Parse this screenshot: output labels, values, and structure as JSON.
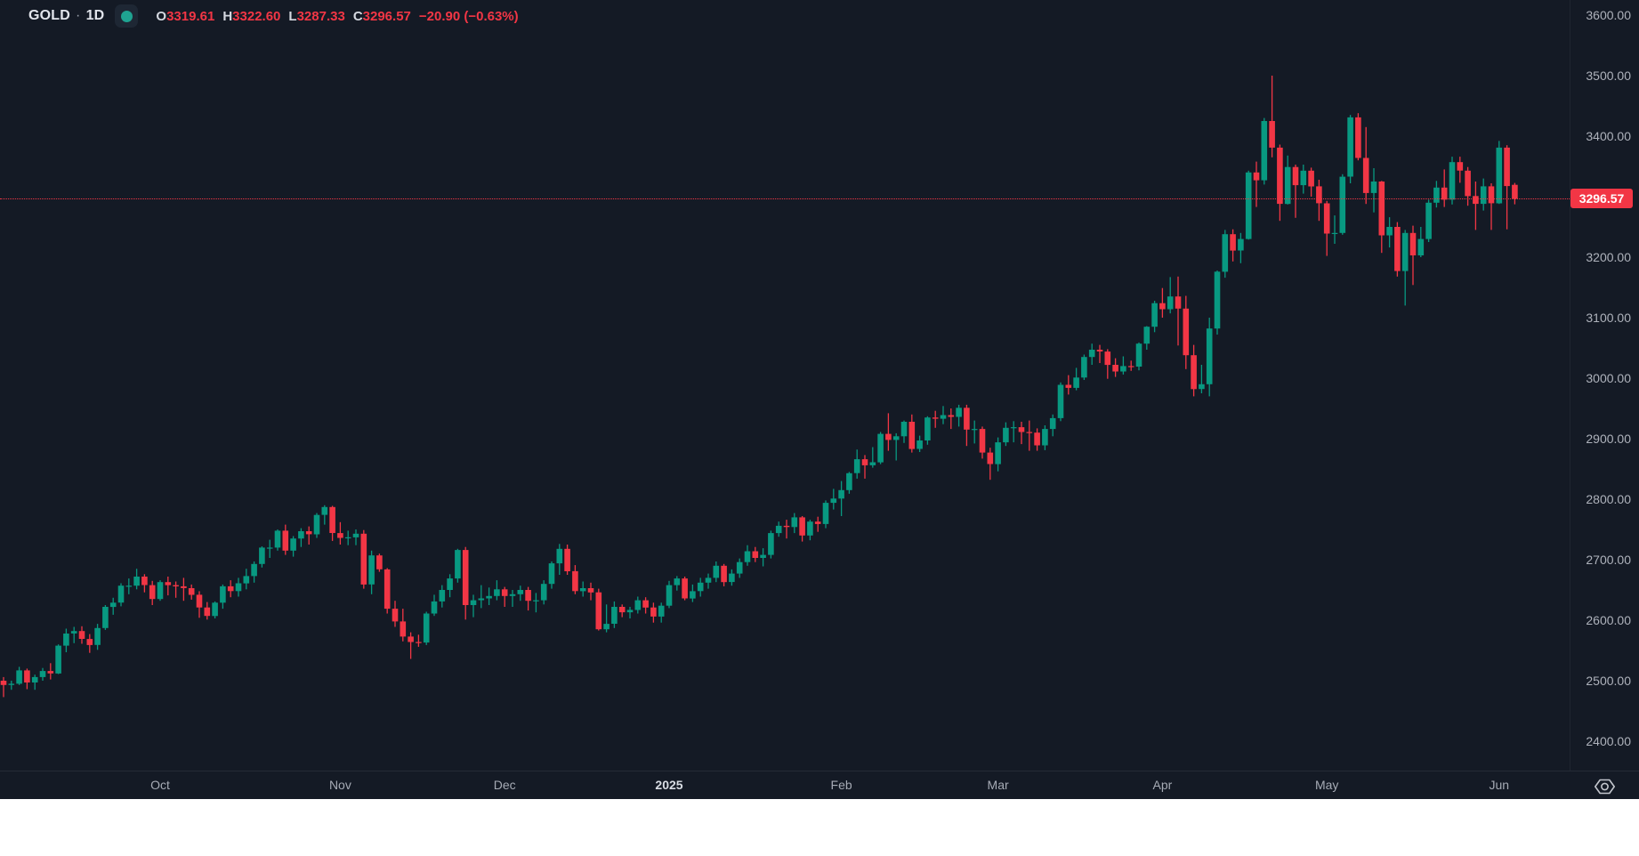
{
  "header": {
    "symbol": "GOLD",
    "separator": "·",
    "interval": "1D",
    "open_label": "O",
    "open_value": "3319.61",
    "high_label": "H",
    "high_value": "3322.60",
    "low_label": "L",
    "low_value": "3287.33",
    "close_label": "C",
    "close_value": "3296.57",
    "change_text": "−20.90 (−0.63%)"
  },
  "price_axis": {
    "labels": [
      "3600.00",
      "3500.00",
      "3400.00",
      "3300.00",
      "3200.00",
      "3100.00",
      "3000.00",
      "2900.00",
      "2800.00",
      "2700.00",
      "2600.00",
      "2500.00",
      "2400.00"
    ]
  },
  "time_axis": {
    "ticks": [
      {
        "label": "Oct",
        "index": 20,
        "bold": false
      },
      {
        "label": "Nov",
        "index": 43,
        "bold": false
      },
      {
        "label": "Dec",
        "index": 64,
        "bold": false
      },
      {
        "label": "2025",
        "index": 85,
        "bold": true
      },
      {
        "label": "Feb",
        "index": 107,
        "bold": false
      },
      {
        "label": "Mar",
        "index": 127,
        "bold": false
      },
      {
        "label": "Apr",
        "index": 148,
        "bold": false
      },
      {
        "label": "May",
        "index": 169,
        "bold": false
      },
      {
        "label": "Jun",
        "index": 191,
        "bold": false
      }
    ]
  },
  "price_line": {
    "value": 3296.57,
    "label": "3296.57",
    "color": "#f23645"
  },
  "colors": {
    "background": "#141a25",
    "up": "#089981",
    "down": "#f23645",
    "axis_text": "#aeb2bb",
    "bright_text": "#e2e5ec",
    "status_dot": "#1fa391",
    "border": "#252b37"
  },
  "chart_data": {
    "type": "candlestick",
    "symbol": "GOLD",
    "interval": "1D",
    "start_date": "2024-09-03",
    "end_date": "2025-06-04",
    "y_axis": {
      "min": 2400,
      "max": 3600,
      "tick_step": 100
    },
    "legend_ohlc": {
      "open": 3319.61,
      "high": 3322.6,
      "low": 3287.33,
      "close": 3296.57,
      "change": -20.9,
      "change_pct": -0.63
    },
    "ohlc": [
      [
        2500,
        2506,
        2473,
        2493
      ],
      [
        2493,
        2500,
        2485,
        2495
      ],
      [
        2495,
        2523,
        2493,
        2517
      ],
      [
        2517,
        2520,
        2486,
        2497
      ],
      [
        2497,
        2510,
        2485,
        2506
      ],
      [
        2506,
        2521,
        2500,
        2516
      ],
      [
        2516,
        2529,
        2502,
        2512
      ],
      [
        2512,
        2560,
        2511,
        2558
      ],
      [
        2558,
        2586,
        2547,
        2578
      ],
      [
        2578,
        2589,
        2562,
        2582
      ],
      [
        2582,
        2590,
        2561,
        2569
      ],
      [
        2569,
        2577,
        2546,
        2559
      ],
      [
        2559,
        2594,
        2551,
        2587
      ],
      [
        2587,
        2625,
        2584,
        2622
      ],
      [
        2622,
        2637,
        2609,
        2629
      ],
      [
        2629,
        2661,
        2623,
        2657
      ],
      [
        2657,
        2669,
        2643,
        2657
      ],
      [
        2657,
        2685,
        2651,
        2672
      ],
      [
        2672,
        2676,
        2646,
        2658
      ],
      [
        2658,
        2665,
        2625,
        2635
      ],
      [
        2635,
        2666,
        2632,
        2663
      ],
      [
        2663,
        2672,
        2641,
        2658
      ],
      [
        2658,
        2664,
        2637,
        2656
      ],
      [
        2656,
        2670,
        2632,
        2653
      ],
      [
        2653,
        2659,
        2634,
        2642
      ],
      [
        2642,
        2648,
        2604,
        2621
      ],
      [
        2621,
        2630,
        2601,
        2607
      ],
      [
        2607,
        2631,
        2603,
        2629
      ],
      [
        2629,
        2659,
        2619,
        2656
      ],
      [
        2656,
        2666,
        2638,
        2648
      ],
      [
        2648,
        2670,
        2639,
        2661
      ],
      [
        2661,
        2685,
        2651,
        2673
      ],
      [
        2673,
        2697,
        2662,
        2693
      ],
      [
        2693,
        2722,
        2687,
        2720
      ],
      [
        2720,
        2733,
        2703,
        2720
      ],
      [
        2720,
        2750,
        2715,
        2748
      ],
      [
        2748,
        2758,
        2708,
        2715
      ],
      [
        2715,
        2739,
        2705,
        2735
      ],
      [
        2735,
        2752,
        2721,
        2747
      ],
      [
        2747,
        2755,
        2725,
        2742
      ],
      [
        2742,
        2777,
        2736,
        2774
      ],
      [
        2774,
        2790,
        2758,
        2787
      ],
      [
        2787,
        2789,
        2731,
        2744
      ],
      [
        2744,
        2762,
        2725,
        2736
      ],
      [
        2736,
        2748,
        2724,
        2737
      ],
      [
        2737,
        2750,
        2724,
        2743
      ],
      [
        2743,
        2749,
        2652,
        2659
      ],
      [
        2659,
        2715,
        2643,
        2707
      ],
      [
        2707,
        2710,
        2680,
        2684
      ],
      [
        2684,
        2686,
        2611,
        2619
      ],
      [
        2619,
        2632,
        2589,
        2598
      ],
      [
        2598,
        2619,
        2565,
        2573
      ],
      [
        2573,
        2580,
        2536,
        2564
      ],
      [
        2564,
        2576,
        2556,
        2563
      ],
      [
        2563,
        2614,
        2559,
        2611
      ],
      [
        2611,
        2642,
        2607,
        2631
      ],
      [
        2631,
        2658,
        2621,
        2650
      ],
      [
        2650,
        2676,
        2638,
        2669
      ],
      [
        2669,
        2718,
        2662,
        2716
      ],
      [
        2716,
        2721,
        2601,
        2625
      ],
      [
        2625,
        2642,
        2605,
        2633
      ],
      [
        2633,
        2658,
        2620,
        2636
      ],
      [
        2636,
        2654,
        2625,
        2640
      ],
      [
        2640,
        2666,
        2633,
        2651
      ],
      [
        2651,
        2655,
        2622,
        2640
      ],
      [
        2640,
        2650,
        2622,
        2643
      ],
      [
        2643,
        2657,
        2632,
        2650
      ],
      [
        2650,
        2655,
        2616,
        2632
      ],
      [
        2632,
        2645,
        2613,
        2633
      ],
      [
        2633,
        2666,
        2626,
        2660
      ],
      [
        2660,
        2697,
        2652,
        2694
      ],
      [
        2694,
        2726,
        2675,
        2718
      ],
      [
        2718,
        2725,
        2675,
        2681
      ],
      [
        2681,
        2691,
        2643,
        2648
      ],
      [
        2648,
        2664,
        2639,
        2653
      ],
      [
        2653,
        2662,
        2633,
        2646
      ],
      [
        2646,
        2652,
        2583,
        2585
      ],
      [
        2585,
        2626,
        2580,
        2594
      ],
      [
        2594,
        2631,
        2587,
        2622
      ],
      [
        2622,
        2626,
        2605,
        2613
      ],
      [
        2613,
        2622,
        2603,
        2617
      ],
      [
        2617,
        2639,
        2611,
        2633
      ],
      [
        2633,
        2638,
        2611,
        2621
      ],
      [
        2621,
        2629,
        2596,
        2606
      ],
      [
        2606,
        2629,
        2596,
        2624
      ],
      [
        2624,
        2665,
        2620,
        2658
      ],
      [
        2658,
        2673,
        2649,
        2669
      ],
      [
        2669,
        2672,
        2633,
        2636
      ],
      [
        2636,
        2659,
        2630,
        2648
      ],
      [
        2648,
        2670,
        2639,
        2662
      ],
      [
        2662,
        2677,
        2652,
        2670
      ],
      [
        2670,
        2697,
        2663,
        2690
      ],
      [
        2690,
        2693,
        2656,
        2663
      ],
      [
        2663,
        2684,
        2657,
        2677
      ],
      [
        2677,
        2702,
        2670,
        2696
      ],
      [
        2696,
        2724,
        2690,
        2714
      ],
      [
        2714,
        2721,
        2696,
        2703
      ],
      [
        2703,
        2719,
        2689,
        2708
      ],
      [
        2708,
        2748,
        2702,
        2744
      ],
      [
        2744,
        2763,
        2738,
        2756
      ],
      [
        2756,
        2766,
        2735,
        2754
      ],
      [
        2754,
        2777,
        2744,
        2770
      ],
      [
        2770,
        2772,
        2730,
        2740
      ],
      [
        2740,
        2766,
        2732,
        2763
      ],
      [
        2763,
        2771,
        2746,
        2759
      ],
      [
        2759,
        2798,
        2752,
        2794
      ],
      [
        2794,
        2817,
        2783,
        2801
      ],
      [
        2801,
        2830,
        2772,
        2815
      ],
      [
        2815,
        2845,
        2809,
        2843
      ],
      [
        2843,
        2882,
        2834,
        2866
      ],
      [
        2866,
        2873,
        2834,
        2856
      ],
      [
        2856,
        2886,
        2852,
        2861
      ],
      [
        2861,
        2911,
        2858,
        2908
      ],
      [
        2908,
        2942,
        2880,
        2898
      ],
      [
        2898,
        2909,
        2864,
        2904
      ],
      [
        2904,
        2930,
        2893,
        2928
      ],
      [
        2928,
        2940,
        2877,
        2883
      ],
      [
        2883,
        2905,
        2878,
        2897
      ],
      [
        2897,
        2937,
        2890,
        2935
      ],
      [
        2935,
        2946,
        2918,
        2933
      ],
      [
        2933,
        2954,
        2924,
        2939
      ],
      [
        2939,
        2950,
        2916,
        2936
      ],
      [
        2936,
        2956,
        2920,
        2951
      ],
      [
        2951,
        2956,
        2888,
        2915
      ],
      [
        2915,
        2930,
        2892,
        2916
      ],
      [
        2916,
        2920,
        2867,
        2877
      ],
      [
        2877,
        2885,
        2832,
        2858
      ],
      [
        2858,
        2902,
        2846,
        2894
      ],
      [
        2894,
        2927,
        2888,
        2918
      ],
      [
        2918,
        2929,
        2894,
        2919
      ],
      [
        2919,
        2928,
        2891,
        2911
      ],
      [
        2911,
        2930,
        2880,
        2910
      ],
      [
        2910,
        2917,
        2880,
        2889
      ],
      [
        2889,
        2922,
        2881,
        2916
      ],
      [
        2916,
        2940,
        2904,
        2934
      ],
      [
        2934,
        2993,
        2929,
        2989
      ],
      [
        2989,
        3005,
        2973,
        2984
      ],
      [
        2984,
        3017,
        2980,
        3001
      ],
      [
        3001,
        3039,
        2997,
        3035
      ],
      [
        3035,
        3057,
        3022,
        3047
      ],
      [
        3047,
        3055,
        3025,
        3044
      ],
      [
        3044,
        3048,
        2999,
        3022
      ],
      [
        3022,
        3033,
        3002,
        3011
      ],
      [
        3011,
        3036,
        3006,
        3020
      ],
      [
        3020,
        3029,
        3012,
        3019
      ],
      [
        3019,
        3059,
        3013,
        3057
      ],
      [
        3057,
        3086,
        3047,
        3085
      ],
      [
        3085,
        3128,
        3076,
        3124
      ],
      [
        3124,
        3149,
        3100,
        3114
      ],
      [
        3114,
        3167,
        3107,
        3135
      ],
      [
        3135,
        3168,
        3054,
        3115
      ],
      [
        3115,
        3136,
        3015,
        3038
      ],
      [
        3038,
        3055,
        2970,
        2982
      ],
      [
        2982,
        3022,
        2975,
        2990
      ],
      [
        2990,
        3100,
        2970,
        3082
      ],
      [
        3082,
        3178,
        3072,
        3176
      ],
      [
        3176,
        3245,
        3166,
        3238
      ],
      [
        3238,
        3246,
        3193,
        3211
      ],
      [
        3211,
        3240,
        3190,
        3230
      ],
      [
        3230,
        3343,
        3229,
        3340
      ],
      [
        3340,
        3358,
        3283,
        3327
      ],
      [
        3327,
        3430,
        3320,
        3425
      ],
      [
        3425,
        3500,
        3365,
        3381
      ],
      [
        3381,
        3386,
        3260,
        3288
      ],
      [
        3288,
        3368,
        3287,
        3349
      ],
      [
        3349,
        3353,
        3265,
        3319
      ],
      [
        3319,
        3353,
        3305,
        3343
      ],
      [
        3343,
        3348,
        3300,
        3317
      ],
      [
        3317,
        3328,
        3260,
        3289
      ],
      [
        3289,
        3293,
        3202,
        3239
      ],
      [
        3239,
        3269,
        3222,
        3240
      ],
      [
        3240,
        3337,
        3237,
        3333
      ],
      [
        3333,
        3435,
        3322,
        3431
      ],
      [
        3431,
        3438,
        3360,
        3364
      ],
      [
        3364,
        3415,
        3288,
        3306
      ],
      [
        3306,
        3347,
        3274,
        3325
      ],
      [
        3325,
        3326,
        3207,
        3236
      ],
      [
        3236,
        3266,
        3216,
        3250
      ],
      [
        3250,
        3258,
        3168,
        3177
      ],
      [
        3177,
        3245,
        3120,
        3240
      ],
      [
        3240,
        3252,
        3154,
        3203
      ],
      [
        3203,
        3250,
        3200,
        3230
      ],
      [
        3230,
        3295,
        3225,
        3290
      ],
      [
        3290,
        3326,
        3282,
        3315
      ],
      [
        3315,
        3345,
        3283,
        3295
      ],
      [
        3295,
        3366,
        3287,
        3357
      ],
      [
        3357,
        3366,
        3323,
        3343
      ],
      [
        3343,
        3349,
        3285,
        3301
      ],
      [
        3301,
        3325,
        3245,
        3288
      ],
      [
        3288,
        3330,
        3277,
        3317
      ],
      [
        3317,
        3322,
        3245,
        3289
      ],
      [
        3289,
        3392,
        3288,
        3381
      ],
      [
        3381,
        3385,
        3246,
        3317.47
      ],
      [
        3319.61,
        3322.6,
        3287.33,
        3296.57
      ]
    ]
  }
}
